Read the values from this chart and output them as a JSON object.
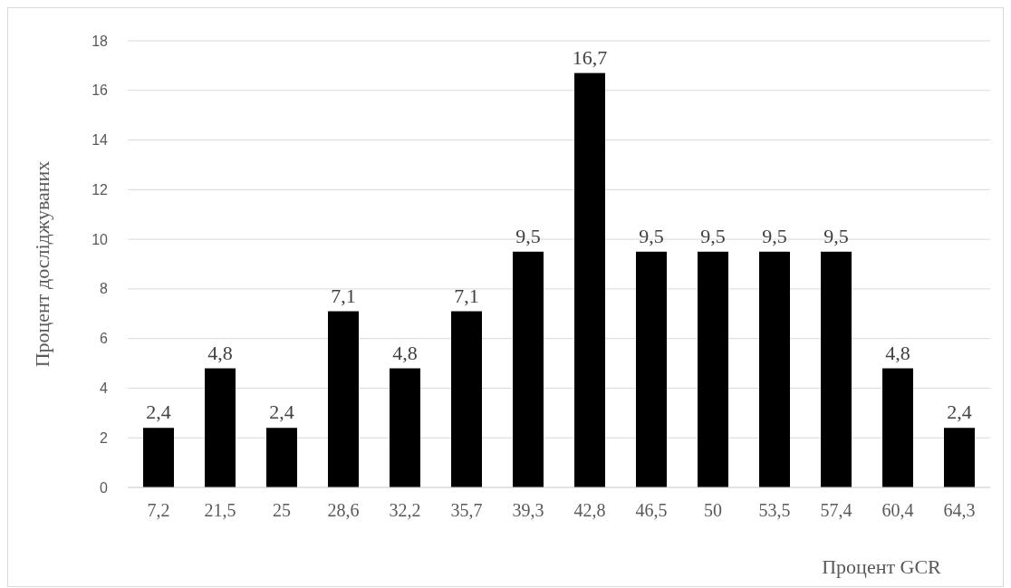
{
  "chart_data": {
    "type": "bar",
    "xlabel": "Процент GCR",
    "ylabel": "Процент досліджуваних",
    "categories": [
      "7,2",
      "21,5",
      "25",
      "28,6",
      "32,2",
      "35,7",
      "39,3",
      "42,8",
      "46,5",
      "50",
      "53,5",
      "57,4",
      "60,4",
      "64,3"
    ],
    "values": [
      2.4,
      4.8,
      2.4,
      7.1,
      4.8,
      7.1,
      9.5,
      16.7,
      9.5,
      9.5,
      9.5,
      9.5,
      4.8,
      2.4
    ],
    "value_labels": [
      "2,4",
      "4,8",
      "2,4",
      "7,1",
      "4,8",
      "7,1",
      "9,5",
      "16,7",
      "9,5",
      "9,5",
      "9,5",
      "9,5",
      "4,8",
      "2,4"
    ],
    "color": "#000000",
    "ylim": [
      0,
      18
    ],
    "yticks": [
      0,
      2,
      4,
      6,
      8,
      10,
      12,
      14,
      16,
      18
    ],
    "grid": "y"
  }
}
